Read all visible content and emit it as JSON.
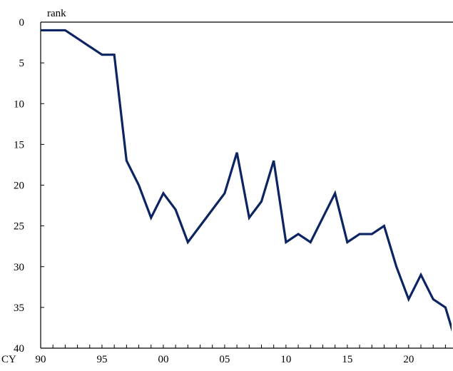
{
  "chart_data": {
    "type": "line",
    "ylabel": "rank",
    "xlabel_prefix": "CY",
    "y_inverted": true,
    "ylim": [
      0,
      40
    ],
    "y_ticks": [
      0,
      5,
      10,
      15,
      20,
      25,
      30,
      35,
      40
    ],
    "xlim": [
      1990,
      2023.5
    ],
    "x_ticks": [
      {
        "value": 1990,
        "label": "90"
      },
      {
        "value": 1995,
        "label": "95"
      },
      {
        "value": 2000,
        "label": "00"
      },
      {
        "value": 2005,
        "label": "05"
      },
      {
        "value": 2010,
        "label": "10"
      },
      {
        "value": 2015,
        "label": "15"
      },
      {
        "value": 2020,
        "label": "20"
      }
    ],
    "grid": false,
    "series": [
      {
        "color": "#0d2463",
        "points": [
          {
            "x": 1990,
            "y": 1
          },
          {
            "x": 1991,
            "y": 1
          },
          {
            "x": 1992,
            "y": 1
          },
          {
            "x": 1993,
            "y": 2
          },
          {
            "x": 1994,
            "y": 3
          },
          {
            "x": 1995,
            "y": 4
          },
          {
            "x": 1996,
            "y": 4
          },
          {
            "x": 1997,
            "y": 17
          },
          {
            "x": 1998,
            "y": 20
          },
          {
            "x": 1999,
            "y": 24
          },
          {
            "x": 2000,
            "y": 21
          },
          {
            "x": 2001,
            "y": 23
          },
          {
            "x": 2002,
            "y": 27
          },
          {
            "x": 2003,
            "y": 25
          },
          {
            "x": 2004,
            "y": 23
          },
          {
            "x": 2005,
            "y": 21
          },
          {
            "x": 2006,
            "y": 16
          },
          {
            "x": 2007,
            "y": 24
          },
          {
            "x": 2008,
            "y": 22
          },
          {
            "x": 2009,
            "y": 17
          },
          {
            "x": 2010,
            "y": 27
          },
          {
            "x": 2011,
            "y": 26
          },
          {
            "x": 2012,
            "y": 27
          },
          {
            "x": 2013,
            "y": 24
          },
          {
            "x": 2014,
            "y": 21
          },
          {
            "x": 2015,
            "y": 27
          },
          {
            "x": 2016,
            "y": 26
          },
          {
            "x": 2017,
            "y": 26
          },
          {
            "x": 2018,
            "y": 25
          },
          {
            "x": 2019,
            "y": 30
          },
          {
            "x": 2020,
            "y": 34
          },
          {
            "x": 2021,
            "y": 31
          },
          {
            "x": 2022,
            "y": 34
          },
          {
            "x": 2023,
            "y": 35
          },
          {
            "x": 2023.6,
            "y": 38
          }
        ]
      }
    ]
  }
}
